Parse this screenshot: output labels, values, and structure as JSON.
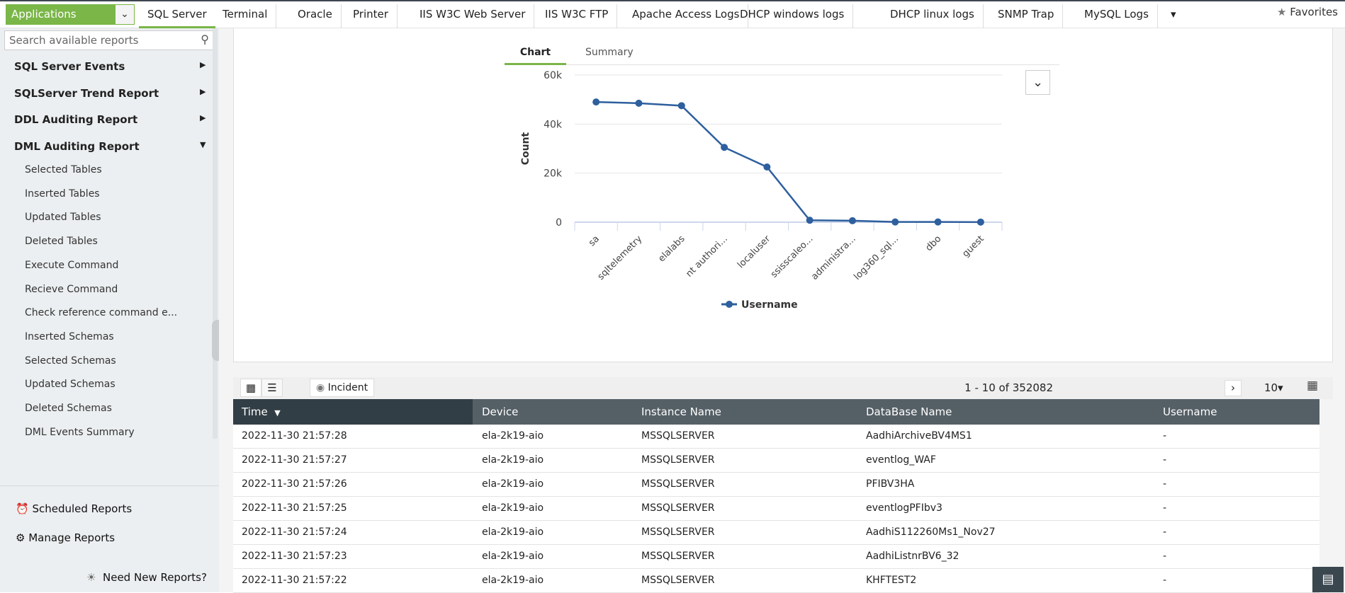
{
  "topnav": {
    "app_selector": "Applications",
    "tabs": [
      "SQL Server",
      "Terminal",
      "Oracle",
      "Printer",
      "IIS W3C Web Server",
      "IIS W3C FTP",
      "Apache Access Logs",
      "DHCP windows logs",
      "DHCP linux logs",
      "SNMP Trap",
      "MySQL Logs"
    ],
    "active_tab": "SQL Server",
    "favorites": "Favorites"
  },
  "sidebar": {
    "search_placeholder": "Search available reports",
    "groups": [
      "SQL Server Events",
      "SQLServer Trend Report",
      "DDL Auditing Report",
      "DML Auditing Report"
    ],
    "expanded_group": "DML Auditing Report",
    "items": [
      "Selected Tables",
      "Inserted Tables",
      "Updated Tables",
      "Deleted Tables",
      "Execute Command",
      "Recieve Command",
      "Check reference command e...",
      "Inserted Schemas",
      "Selected Schemas",
      "Updated Schemas",
      "Deleted Schemas",
      "DML Events Summary"
    ],
    "scheduled": "Scheduled Reports",
    "manage": "Manage Reports",
    "need_new": "Need New Reports?"
  },
  "chart_tabs": {
    "chart": "Chart",
    "summary": "Summary",
    "active": "Chart"
  },
  "chart_data": {
    "type": "line",
    "categories": [
      "sa",
      "sqltelemetry",
      "elalabs",
      "nt authori...",
      "localuser",
      "ssisscaleo...",
      "administra...",
      "log360_sql...",
      "dbo",
      "guest"
    ],
    "series": [
      {
        "name": "Username",
        "values": [
          49000,
          48500,
          47500,
          30500,
          22500,
          800,
          600,
          100,
          100,
          50
        ],
        "color": "#2e5f9e"
      }
    ],
    "ylabel": "Count",
    "ylim": [
      0,
      60000
    ],
    "yticks": [
      0,
      20000,
      40000,
      60000
    ],
    "ytick_labels": [
      "0",
      "20k",
      "40k",
      "60k"
    ],
    "grid": true,
    "legend": "bottom"
  },
  "table": {
    "view_grid": "grid-icon",
    "view_list": "list-icon",
    "incident": "Incident",
    "pager": "1 - 10 of 352082",
    "page_size": "10",
    "columns": [
      "Time",
      "Device",
      "Instance Name",
      "DataBase Name",
      "Username"
    ],
    "rows": [
      [
        "2022-11-30 21:57:28",
        "ela-2k19-aio",
        "MSSQLSERVER",
        "AadhiArchiveBV4MS1",
        "-"
      ],
      [
        "2022-11-30 21:57:27",
        "ela-2k19-aio",
        "MSSQLSERVER",
        "eventlog_WAF",
        "-"
      ],
      [
        "2022-11-30 21:57:26",
        "ela-2k19-aio",
        "MSSQLSERVER",
        "PFIBV3HA",
        "-"
      ],
      [
        "2022-11-30 21:57:25",
        "ela-2k19-aio",
        "MSSQLSERVER",
        "eventlogPFIbv3",
        "-"
      ],
      [
        "2022-11-30 21:57:24",
        "ela-2k19-aio",
        "MSSQLSERVER",
        "AadhiS112260Ms1_Nov27",
        "-"
      ],
      [
        "2022-11-30 21:57:23",
        "ela-2k19-aio",
        "MSSQLSERVER",
        "AadhiListnrBV6_32",
        "-"
      ],
      [
        "2022-11-30 21:57:22",
        "ela-2k19-aio",
        "MSSQLSERVER",
        "KHFTEST2",
        "-"
      ]
    ]
  },
  "colors": {
    "accent": "#7ab648",
    "header_dark": "#323e46",
    "header": "#555f66",
    "series": "#2e5f9e"
  }
}
